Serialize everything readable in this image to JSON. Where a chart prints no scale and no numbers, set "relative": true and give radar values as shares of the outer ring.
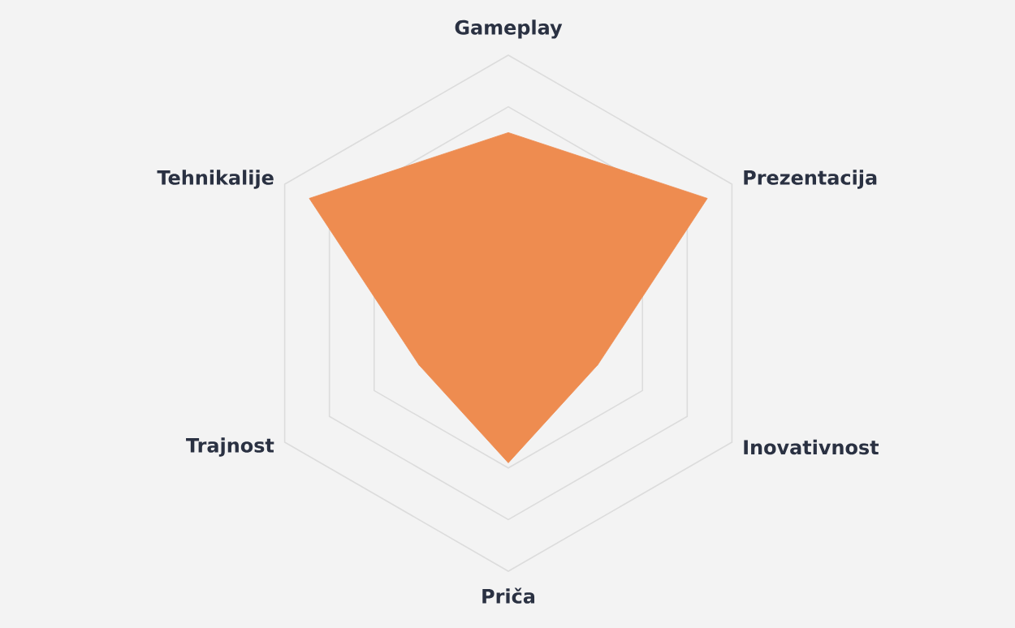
{
  "chart_data": {
    "type": "radar",
    "relative": true,
    "grid": true,
    "categories": [
      "Gameplay",
      "Prezentacija",
      "Inovativnost",
      "Priča",
      "Trajnost",
      "Tehnikalije"
    ],
    "series": [
      {
        "color": "#ee8c50",
        "values": [
          0.7,
          0.89,
          0.4,
          0.58,
          0.4,
          0.89
        ]
      }
    ]
  }
}
